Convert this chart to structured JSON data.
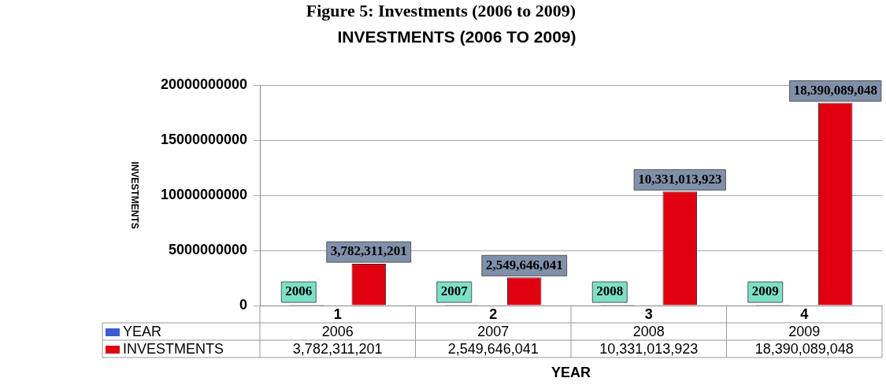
{
  "chart_data": {
    "type": "bar",
    "title": "Figure 5: Investments (2006 to 2009)",
    "subtitle": "INVESTMENTS (2006 TO 2009)",
    "xlabel": "YEAR",
    "ylabel": "INVESTMENTS",
    "categories": [
      "1",
      "2",
      "3",
      "4"
    ],
    "series": [
      {
        "name": "YEAR",
        "color": "#3b5bd0",
        "values": [
          2006,
          2007,
          2008,
          2009
        ],
        "value_labels": [
          "2006",
          "2007",
          "2008",
          "2009"
        ]
      },
      {
        "name": "INVESTMENTS",
        "color": "#e00010",
        "values": [
          3782311201,
          2549646041,
          10331013923,
          18390089048
        ],
        "value_labels": [
          "3,782,311,201",
          "2,549,646,041",
          "10,331,013,923",
          "18,390,089,048"
        ]
      }
    ],
    "ylim": [
      0,
      20000000000
    ],
    "yticks": [
      0,
      5000000000,
      10000000000,
      15000000000,
      20000000000
    ],
    "grid": "y",
    "legend": "bottom"
  }
}
